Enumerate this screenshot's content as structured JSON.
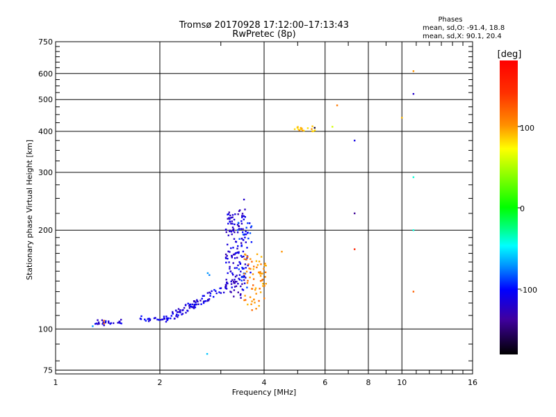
{
  "chart_data": {
    "type": "scatter",
    "title": "Tromsø 20170928 17:12:00–17:13:43",
    "subtitle": "RwPretec (8p)",
    "xlabel": "Frequency [MHz]",
    "ylabel": "Stationary phase Virtual Height [km]",
    "xscale": "log",
    "yscale": "log",
    "xlim": [
      1,
      16
    ],
    "ylim": [
      73,
      750
    ],
    "x_ticks": [
      1,
      2,
      4,
      6,
      8,
      10,
      16
    ],
    "x_tick_labels": [
      "1",
      "2",
      "4",
      "6",
      "8",
      "10",
      "16"
    ],
    "y_ticks": [
      75,
      100,
      200,
      300,
      400,
      500,
      600,
      750
    ],
    "y_tick_labels": [
      "75",
      "100",
      "200",
      "300",
      "400",
      "500",
      "600",
      "750"
    ],
    "grid": true,
    "stats": {
      "heading": "Phases",
      "o_line": "mean, sd,O: -91.4, 18.8",
      "x_line": "mean, sd,X:  90.1, 20.4"
    },
    "colorbar": {
      "label": "[deg]",
      "range": [
        -180,
        180
      ],
      "ticks": [
        100,
        0,
        -100
      ],
      "tick_labels": [
        "100",
        "0",
        "-100"
      ]
    },
    "point_groups": [
      {
        "name": "E-region trace",
        "x_range": [
          1.3,
          1.55
        ],
        "y_range": [
          103,
          106
        ],
        "phase": -110,
        "count": 25
      },
      {
        "name": "low F trace",
        "x_range": [
          1.75,
          2.15
        ],
        "y_range": [
          106,
          109
        ],
        "phase": -108,
        "count": 35
      },
      {
        "name": "rising F trace",
        "x_range": [
          2.15,
          3.15
        ],
        "y_range": [
          109,
          135
        ],
        "phase": -112,
        "count": 90
      },
      {
        "name": "F cusp",
        "x_range": [
          3.1,
          3.55
        ],
        "y_range": [
          125,
          230
        ],
        "phase": -118,
        "count": 150
      },
      {
        "name": "F cusp scatter",
        "x_range": [
          3.35,
          3.7
        ],
        "y_range": [
          130,
          210
        ],
        "phase": -95,
        "count": 40
      },
      {
        "name": "X trace",
        "x_range": [
          3.5,
          4.05
        ],
        "y_range": [
          115,
          170
        ],
        "phase": 105,
        "count": 70
      },
      {
        "name": "upper trace",
        "x_range": [
          4.9,
          5.8
        ],
        "y_range": [
          395,
          415
        ],
        "phase": 90,
        "count": 18
      }
    ],
    "points": [
      {
        "x": 1.38,
        "y": 104,
        "phase": 120
      },
      {
        "x": 1.38,
        "y": 106,
        "phase": 125
      },
      {
        "x": 1.28,
        "y": 102,
        "phase": -70
      },
      {
        "x": 2.75,
        "y": 148,
        "phase": -70
      },
      {
        "x": 2.78,
        "y": 146,
        "phase": -75
      },
      {
        "x": 2.74,
        "y": 84,
        "phase": -60
      },
      {
        "x": 3.5,
        "y": 248,
        "phase": -120
      },
      {
        "x": 4.5,
        "y": 172,
        "phase": 100
      },
      {
        "x": 5.6,
        "y": 410,
        "phase": -170
      },
      {
        "x": 6.3,
        "y": 413,
        "phase": 60
      },
      {
        "x": 6.5,
        "y": 480,
        "phase": 110
      },
      {
        "x": 7.3,
        "y": 375,
        "phase": -110
      },
      {
        "x": 7.3,
        "y": 225,
        "phase": -140
      },
      {
        "x": 7.3,
        "y": 175,
        "phase": 150
      },
      {
        "x": 10,
        "y": 440,
        "phase": 90
      },
      {
        "x": 10.8,
        "y": 610,
        "phase": 100
      },
      {
        "x": 10.8,
        "y": 520,
        "phase": -120
      },
      {
        "x": 10.8,
        "y": 290,
        "phase": -40
      },
      {
        "x": 10.8,
        "y": 200,
        "phase": -40
      },
      {
        "x": 10.8,
        "y": 130,
        "phase": 120
      }
    ]
  }
}
